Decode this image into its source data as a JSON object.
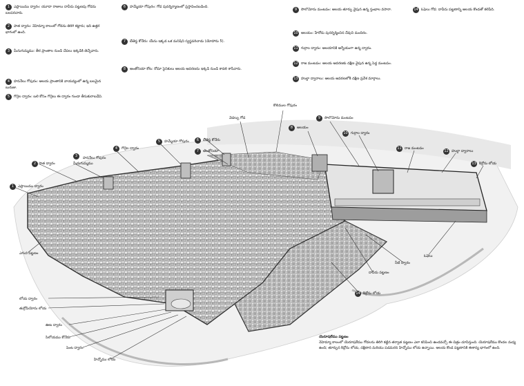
{
  "notes": [
    {
      "num": "1",
      "text": "ఎఫ్రాయిము ద్వారం: యూదా రాజులు దావీదు పట్టణపు గోడను బలపరచారు."
    },
    {
      "num": "2",
      "text": "పాత ద్వారం: నెహెమ్యా కాలంలో గోడను తిరిగి కట్టారు; ఇది ఉత్తర భాగంలో ఉంది."
    },
    {
      "num": "3",
      "text": "మీనుగుమ్మము: తీర ప్రాంతాల నుండి చేపలు ఇక్కడికి తెచ్చేవారు."
    },
    {
      "num": "4",
      "text": "హననేలు గోపురం: ఆలయ ప్రాంతానికి వాయవ్యంలో ఉన్న బలమైన బురుజు."
    },
    {
      "num": "5",
      "text": "గొర్రెల ద్వారం: బలి కోసం గొర్రెలు ఈ ద్వారం గుండా తీసుకురాబడేవి."
    },
    {
      "num": "6",
      "text": "హమ్మేయా గోపురం: గోడ పునర్నిర్మాణంలో ప్రస్తావించబడింది."
    },
    {
      "num": "7",
      "text": "బేతెస్థ కోనేరు: యేసు ఇక్కడ ఒక మనిషిని స్వస్థపరిచాడు (యోహాను 5)."
    },
    {
      "num": "8",
      "text": "ఆంతోనియా కోట: రోమా సైనికులు ఆలయ ఆవరణను ఇక్కడి నుండి కావలి కాసేవారు."
    },
    {
      "num": "9",
      "text": "సొలొమోను మంటపం: ఆలయ తూర్పు వైపున ఉన్న స్తంభాల వసారా."
    },
    {
      "num": "10",
      "text": "ఆలయం: హేరోదు పునర్నిర్మించిన దేవుని మందిరం."
    },
    {
      "num": "11",
      "text": "గుర్రాల ద్వారం: ఆలయానికి ఆగ్నేయంగా ఉన్న ద్వారం."
    },
    {
      "num": "12",
      "text": "రాజ మంటపం: ఆలయ ఆవరణకు దక్షిణ వైపున ఉన్న పెద్ద మంటపం."
    },
    {
      "num": "13",
      "text": "హుల్దా ద్వారాలు: ఆలయ ఆవరణలోకి దక్షిణ ప్రవేశ మార్గాలు."
    },
    {
      "num": "14",
      "text": "ఓఫెలు గోడ: దావీదు పట్టణాన్ని ఆలయ కొండతో కలిపేది."
    }
  ],
  "labels": {
    "ephraim_gate": "ఎఫ్రాయిము ద్వారం",
    "old_gate": "పాత ద్వారం",
    "fish_gate": "మీనుగుమ్మము",
    "hananel_tower": "హననేలు గోపురం",
    "sheep_gate": "గొర్రెల ద్వారం",
    "hammeah_tower": "హమ్మేయా గోపురం",
    "bethesda": "బేతెస్థ కోనేరు",
    "antonia": "ఆంతోనియా",
    "temple": "ఆలయం",
    "solomon_porch": "సొలొమోను మంటపం",
    "horse_gate": "గుర్రాల ద్వారం",
    "royal_porch": "రాజ మంటపం",
    "kidron": "కిద్రోను లోయ",
    "huldah_gates": "హుల్దా ద్వారాలు",
    "ophel": "ఓఫెలు",
    "water_gate": "నీటి ద్వారం",
    "fountain_gate": "ఊట ద్వారం",
    "siloam": "సిలోయము కోనేరు",
    "dung_gate": "పెంట ద్వారం",
    "valley_gate": "లోయ ద్వారం",
    "hinnom": "హిన్నోము లోయ",
    "tyropoeon": "తుర్రోపియోను లోయ",
    "upper_city": "ఎగువ పట్టణం",
    "broad_wall": "వెడల్పు గోడ",
    "furnace_tower": "కొలిముల గోపురం",
    "city_of_david": "దావీదు పట్టణం"
  },
  "caption": {
    "title": "యెరూషలేము పట్టణం",
    "text": "నెహెమ్యా కాలంలో యెరూషలేము గోడలను తిరిగి కట్టిన తర్వాత పట్టణం ఎలా కనిపించి ఉండవచ్చో ఈ చిత్రం చూపిస్తుంది. యెరూషలేము కొండల మధ్య ఉంది; తూర్పున కిద్రోను లోయ, దక్షిణాన మరియు పడమరన హిన్నోము లోయ ఉన్నాయి. ఆలయ కొండ పట్టణానికి ఈశాన్య భాగంలో ఉంది."
  }
}
